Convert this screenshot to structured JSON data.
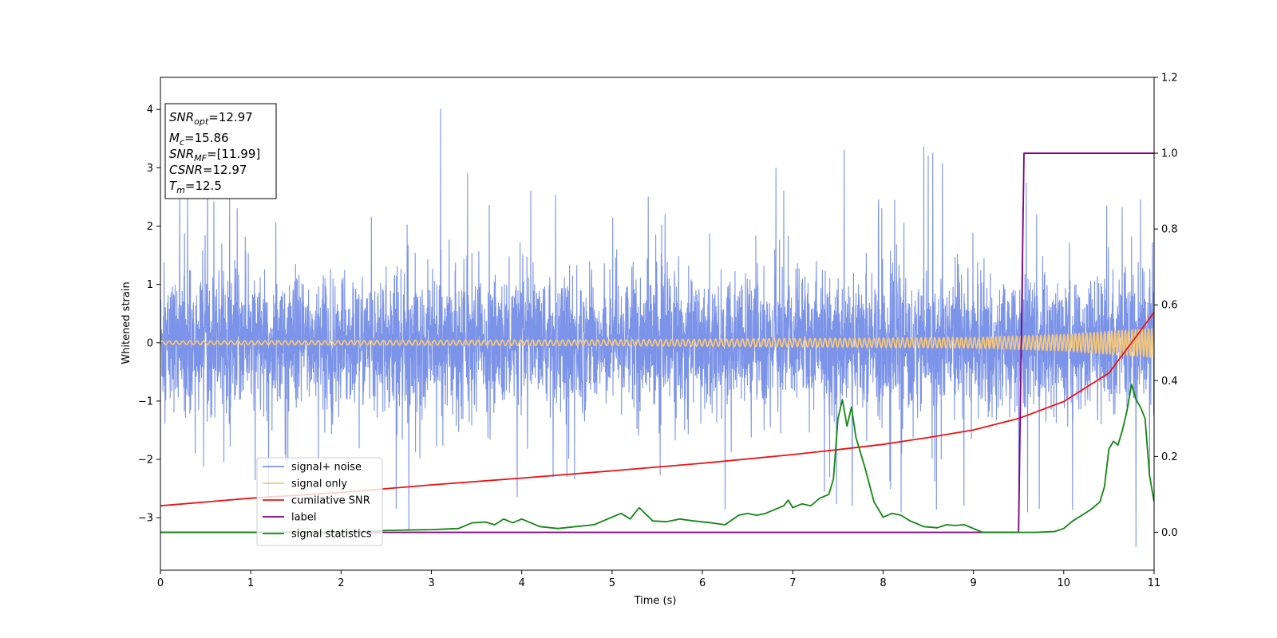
{
  "chart_data": {
    "type": "line",
    "xlabel": "Time (s)",
    "ylabel": "Whitened strain",
    "xlim": [
      0,
      11
    ],
    "ylim_left": [
      -3.9,
      4.55
    ],
    "ylim_right": [
      -0.1,
      1.2
    ],
    "x_ticks": [
      "0",
      "1",
      "2",
      "3",
      "4",
      "5",
      "6",
      "7",
      "8",
      "9",
      "10",
      "11"
    ],
    "y_ticks_left": [
      "−3",
      "−2",
      "−1",
      "0",
      "1",
      "2",
      "3",
      "4"
    ],
    "y_ticks_right": [
      "0.0",
      "0.2",
      "0.4",
      "0.6",
      "0.8",
      "1.0",
      "1.2"
    ],
    "grid": false,
    "legend_position": "lower-left",
    "series": [
      {
        "name": "signal+ noise",
        "axis": "left",
        "color": "#7b93e8",
        "noise_sigma": 0.85,
        "spikes": [
          [
            0.3,
            2.55
          ],
          [
            0.85,
            2.3
          ],
          [
            1.05,
            -2.35
          ],
          [
            1.75,
            -2.0
          ],
          [
            2.75,
            -3.2
          ],
          [
            3.4,
            2.9
          ],
          [
            4.1,
            2.6
          ],
          [
            4.5,
            -2.3
          ],
          [
            5.4,
            2.5
          ],
          [
            6.25,
            -2.85
          ],
          [
            6.9,
            2.6
          ],
          [
            7.35,
            -2.55
          ],
          [
            7.95,
            2.45
          ],
          [
            8.2,
            -2.9
          ],
          [
            8.5,
            3.2
          ],
          [
            8.55,
            3.25
          ],
          [
            9.6,
            -2.9
          ],
          [
            10.8,
            -3.5
          ],
          [
            10.85,
            2.45
          ],
          [
            10.95,
            -2.3
          ]
        ]
      },
      {
        "name": "signal only",
        "axis": "left",
        "color": "#f5c77a",
        "chirp": {
          "t_merger": 12.5,
          "amplitude_at": [
            [
              0,
              0.03
            ],
            [
              5,
              0.05
            ],
            [
              9,
              0.09
            ],
            [
              10,
              0.14
            ],
            [
              11,
              0.25
            ]
          ],
          "cycles_at": [
            [
              0,
              0
            ],
            [
              11,
              190
            ]
          ]
        }
      },
      {
        "name": "cumilative SNR",
        "axis": "right",
        "color": "#ee1111",
        "x": [
          0,
          1,
          2,
          3,
          4,
          5,
          6,
          7,
          7.5,
          8,
          8.5,
          9,
          9.5,
          10,
          10.5,
          11
        ],
        "values": [
          0.07,
          0.09,
          0.105,
          0.125,
          0.143,
          0.162,
          0.182,
          0.205,
          0.218,
          0.232,
          0.25,
          0.27,
          0.3,
          0.345,
          0.42,
          0.58
        ]
      },
      {
        "name": "label",
        "axis": "right",
        "color": "#800080",
        "x": [
          0,
          9.5,
          9.56,
          11
        ],
        "values": [
          0,
          0,
          1.0,
          1.0
        ]
      },
      {
        "name": "signal statistics",
        "axis": "right",
        "color": "#118811",
        "x": [
          0,
          1,
          2,
          2.5,
          3,
          3.3,
          3.45,
          3.6,
          3.7,
          3.8,
          3.9,
          4.0,
          4.2,
          4.4,
          4.6,
          4.8,
          5.0,
          5.1,
          5.2,
          5.3,
          5.45,
          5.6,
          5.75,
          5.9,
          6.1,
          6.25,
          6.4,
          6.5,
          6.6,
          6.7,
          6.8,
          6.9,
          6.95,
          7.0,
          7.1,
          7.2,
          7.3,
          7.4,
          7.45,
          7.5,
          7.55,
          7.6,
          7.65,
          7.7,
          7.8,
          7.9,
          8.0,
          8.1,
          8.2,
          8.3,
          8.45,
          8.6,
          8.7,
          8.8,
          8.9,
          9.0,
          9.1,
          9.3,
          9.5,
          9.7,
          9.9,
          10.0,
          10.1,
          10.2,
          10.3,
          10.4,
          10.45,
          10.5,
          10.55,
          10.6,
          10.65,
          10.7,
          10.75,
          10.8,
          10.85,
          10.9,
          10.95,
          11.0
        ],
        "values": [
          0.0,
          0.0,
          0.0,
          0.005,
          0.007,
          0.01,
          0.025,
          0.027,
          0.02,
          0.035,
          0.025,
          0.035,
          0.015,
          0.01,
          0.015,
          0.02,
          0.04,
          0.05,
          0.035,
          0.065,
          0.03,
          0.028,
          0.035,
          0.03,
          0.025,
          0.02,
          0.045,
          0.05,
          0.045,
          0.05,
          0.06,
          0.07,
          0.085,
          0.065,
          0.075,
          0.07,
          0.09,
          0.1,
          0.14,
          0.3,
          0.35,
          0.28,
          0.33,
          0.25,
          0.17,
          0.08,
          0.04,
          0.05,
          0.045,
          0.03,
          0.015,
          0.012,
          0.02,
          0.018,
          0.02,
          0.01,
          0.0,
          0.0,
          0.0,
          0.0,
          0.002,
          0.01,
          0.03,
          0.045,
          0.06,
          0.08,
          0.12,
          0.22,
          0.24,
          0.23,
          0.27,
          0.32,
          0.39,
          0.35,
          0.33,
          0.3,
          0.15,
          0.08
        ]
      }
    ],
    "annotation": {
      "lines": [
        {
          "sym": "SNR",
          "sub": "opt",
          "val": "=12.97"
        },
        {
          "sym": "M",
          "sub": "c",
          "val": "=15.86"
        },
        {
          "sym": "SNR",
          "sub": "MF",
          "val": "=[11.99]"
        },
        {
          "sym": "CSNR",
          "sub": "",
          "val": "=12.97"
        },
        {
          "sym": "T",
          "sub": "m",
          "val": "=12.5"
        }
      ]
    }
  }
}
